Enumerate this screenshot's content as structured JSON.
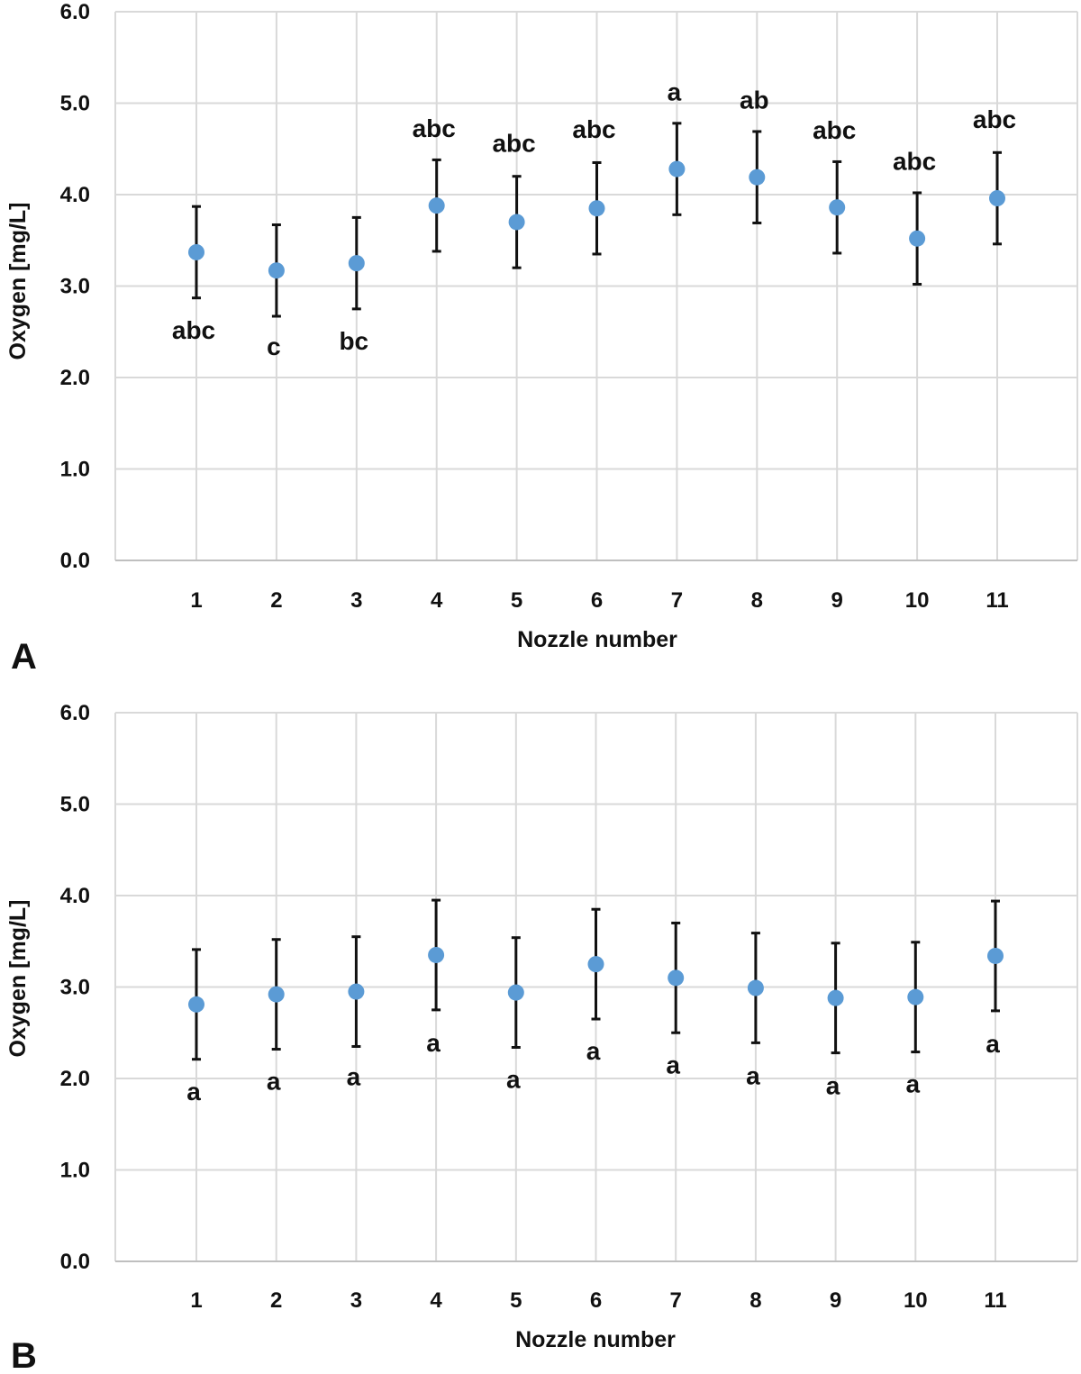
{
  "chart_data": [
    {
      "type": "scatter",
      "panel_label": "A",
      "xlabel": "Nozzle number",
      "ylabel": "Oxygen  [mg/L]",
      "categories": [
        "1",
        "2",
        "3",
        "4",
        "5",
        "6",
        "7",
        "8",
        "9",
        "10",
        "11"
      ],
      "y_ticks": [
        "0.0",
        "1.0",
        "2.0",
        "3.0",
        "4.0",
        "5.0",
        "6.0"
      ],
      "ylim": [
        0,
        6
      ],
      "grid": true,
      "error_bars": "±0.5",
      "marker_color": "#5b9bd5",
      "error_bar_color": "#111111",
      "series": [
        {
          "values": [
            3.37,
            3.17,
            3.25,
            3.88,
            3.7,
            3.85,
            4.28,
            4.19,
            3.86,
            3.52,
            3.96
          ],
          "error": [
            0.5,
            0.5,
            0.5,
            0.5,
            0.5,
            0.5,
            0.5,
            0.5,
            0.5,
            0.5,
            0.5
          ],
          "annotations": [
            "abc",
            "c",
            "bc",
            "abc",
            "abc",
            "abc",
            "a",
            "ab",
            "abc",
            "abc",
            "abc"
          ]
        }
      ]
    },
    {
      "type": "scatter",
      "panel_label": "B",
      "xlabel": "Nozzle number",
      "ylabel": "Oxygen [mg/L]",
      "categories": [
        "1",
        "2",
        "3",
        "4",
        "5",
        "6",
        "7",
        "8",
        "9",
        "10",
        "11"
      ],
      "y_ticks": [
        "0.0",
        "1.0",
        "2.0",
        "3.0",
        "4.0",
        "5.0",
        "6.0"
      ],
      "ylim": [
        0,
        6
      ],
      "grid": true,
      "error_bars": "±0.6",
      "marker_color": "#5b9bd5",
      "error_bar_color": "#111111",
      "series": [
        {
          "values": [
            2.81,
            2.92,
            2.95,
            3.35,
            2.94,
            3.25,
            3.1,
            2.99,
            2.88,
            2.89,
            3.34
          ],
          "error": [
            0.6,
            0.6,
            0.6,
            0.6,
            0.6,
            0.6,
            0.6,
            0.6,
            0.6,
            0.6,
            0.6
          ],
          "annotations": [
            "a",
            "a",
            "a",
            "a",
            "a",
            "a",
            "a",
            "a",
            "a",
            "a",
            "a"
          ]
        }
      ]
    }
  ]
}
